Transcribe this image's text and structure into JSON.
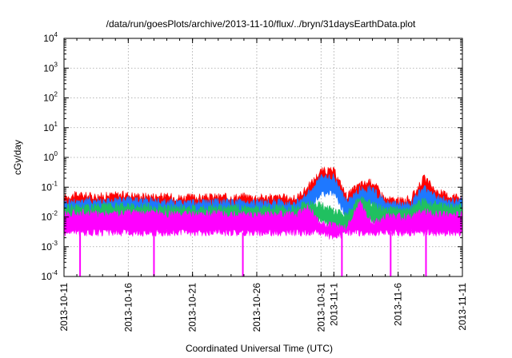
{
  "chart_data": {
    "type": "line",
    "title": "/data/run/goesPlots/archive/2013-11-10/flux/../bryn/31daysEarthData.plot",
    "xlabel": "Coordinated Universal Time (UTC)",
    "ylabel": "cGy/day",
    "yscale": "log",
    "ylim": [
      0.0001,
      10000
    ],
    "xlim": [
      "2013-10-11",
      "2013-11-11"
    ],
    "grid": true,
    "y_ticks": [
      {
        "base": "10",
        "exp": "-4",
        "value": 0.0001
      },
      {
        "base": "10",
        "exp": "-3",
        "value": 0.001
      },
      {
        "base": "10",
        "exp": "-2",
        "value": 0.01
      },
      {
        "base": "10",
        "exp": "-1",
        "value": 0.1
      },
      {
        "base": "10",
        "exp": "0",
        "value": 1
      },
      {
        "base": "10",
        "exp": "1",
        "value": 10
      },
      {
        "base": "10",
        "exp": "2",
        "value": 100
      },
      {
        "base": "10",
        "exp": "3",
        "value": 1000
      },
      {
        "base": "10",
        "exp": "4",
        "value": 10000
      }
    ],
    "x_ticks": [
      {
        "label": "2013-10-11",
        "date": "2013-10-11"
      },
      {
        "label": "2013-10-16",
        "date": "2013-10-16"
      },
      {
        "label": "2013-10-21",
        "date": "2013-10-21"
      },
      {
        "label": "2013-10-26",
        "date": "2013-10-26"
      },
      {
        "label": "2013-10-31",
        "date": "2013-10-31"
      },
      {
        "label": "2013-11-1",
        "date": "2013-11-01"
      },
      {
        "label": "2013-11-6",
        "date": "2013-11-06"
      },
      {
        "label": "2013-11-11",
        "date": "2013-11-11"
      }
    ],
    "series": [
      {
        "color": "#ff0000",
        "x": [
          "2013-10-11",
          "2013-10-12",
          "2013-10-13",
          "2013-10-14",
          "2013-10-15",
          "2013-10-16",
          "2013-10-17",
          "2013-10-18",
          "2013-10-19",
          "2013-10-20",
          "2013-10-21",
          "2013-10-22",
          "2013-10-23",
          "2013-10-24",
          "2013-10-25",
          "2013-10-26",
          "2013-10-27",
          "2013-10-28",
          "2013-10-29",
          "2013-10-30",
          "2013-10-31",
          "2013-11-01",
          "2013-11-02",
          "2013-11-03",
          "2013-11-04",
          "2013-11-05",
          "2013-11-06",
          "2013-11-07",
          "2013-11-08",
          "2013-11-09",
          "2013-11-10",
          "2013-11-11"
        ],
        "values": [
          0.045,
          0.055,
          0.05,
          0.05,
          0.055,
          0.055,
          0.05,
          0.05,
          0.048,
          0.045,
          0.045,
          0.045,
          0.048,
          0.045,
          0.05,
          0.045,
          0.045,
          0.045,
          0.04,
          0.1,
          0.35,
          0.35,
          0.05,
          0.12,
          0.15,
          0.04,
          0.035,
          0.04,
          0.2,
          0.07,
          0.05,
          0.05
        ]
      },
      {
        "color": "#1e78ff",
        "x": [
          "2013-10-11",
          "2013-10-12",
          "2013-10-13",
          "2013-10-14",
          "2013-10-15",
          "2013-10-16",
          "2013-10-17",
          "2013-10-18",
          "2013-10-19",
          "2013-10-20",
          "2013-10-21",
          "2013-10-22",
          "2013-10-23",
          "2013-10-24",
          "2013-10-25",
          "2013-10-26",
          "2013-10-27",
          "2013-10-28",
          "2013-10-29",
          "2013-10-30",
          "2013-10-31",
          "2013-11-01",
          "2013-11-02",
          "2013-11-03",
          "2013-11-04",
          "2013-11-05",
          "2013-11-06",
          "2013-11-07",
          "2013-11-08",
          "2013-11-09",
          "2013-11-10",
          "2013-11-11"
        ],
        "values": [
          0.03,
          0.035,
          0.035,
          0.035,
          0.035,
          0.038,
          0.035,
          0.035,
          0.032,
          0.03,
          0.03,
          0.03,
          0.032,
          0.03,
          0.033,
          0.03,
          0.03,
          0.03,
          0.028,
          0.06,
          0.2,
          0.22,
          0.03,
          0.08,
          0.09,
          0.028,
          0.025,
          0.028,
          0.1,
          0.045,
          0.035,
          0.035
        ]
      },
      {
        "color": "#20c060",
        "x": [
          "2013-10-11",
          "2013-10-12",
          "2013-10-13",
          "2013-10-14",
          "2013-10-15",
          "2013-10-16",
          "2013-10-17",
          "2013-10-18",
          "2013-10-19",
          "2013-10-20",
          "2013-10-21",
          "2013-10-22",
          "2013-10-23",
          "2013-10-24",
          "2013-10-25",
          "2013-10-26",
          "2013-10-27",
          "2013-10-28",
          "2013-10-29",
          "2013-10-30",
          "2013-10-31",
          "2013-11-01",
          "2013-11-02",
          "2013-11-03",
          "2013-11-04",
          "2013-11-05",
          "2013-11-06",
          "2013-11-07",
          "2013-11-08",
          "2013-11-09",
          "2013-11-10",
          "2013-11-11"
        ],
        "values": [
          0.02,
          0.022,
          0.022,
          0.022,
          0.022,
          0.023,
          0.022,
          0.022,
          0.02,
          0.02,
          0.02,
          0.02,
          0.021,
          0.02,
          0.021,
          0.02,
          0.02,
          0.02,
          0.019,
          0.03,
          0.025,
          0.015,
          0.012,
          0.04,
          0.025,
          0.018,
          0.017,
          0.018,
          0.035,
          0.025,
          0.022,
          0.022
        ]
      },
      {
        "color": "#ff00ff",
        "x": [
          "2013-10-11",
          "2013-10-12",
          "2013-10-13",
          "2013-10-14",
          "2013-10-15",
          "2013-10-16",
          "2013-10-17",
          "2013-10-18",
          "2013-10-19",
          "2013-10-20",
          "2013-10-21",
          "2013-10-22",
          "2013-10-23",
          "2013-10-24",
          "2013-10-25",
          "2013-10-26",
          "2013-10-27",
          "2013-10-28",
          "2013-10-29",
          "2013-10-30",
          "2013-10-31",
          "2013-11-01",
          "2013-11-02",
          "2013-11-03",
          "2013-11-04",
          "2013-11-05",
          "2013-11-06",
          "2013-11-07",
          "2013-11-08",
          "2013-11-09",
          "2013-11-10",
          "2013-11-11"
        ],
        "values": [
          0.012,
          0.014,
          0.013,
          0.013,
          0.013,
          0.014,
          0.013,
          0.013,
          0.012,
          0.012,
          0.012,
          0.012,
          0.013,
          0.012,
          0.013,
          0.012,
          0.012,
          0.012,
          0.012,
          0.02,
          0.006,
          0.005,
          0.004,
          0.03,
          0.006,
          0.01,
          0.01,
          0.01,
          0.015,
          0.012,
          0.012,
          0.012
        ],
        "lower_values": [
          0.003,
          0.003,
          0.003,
          0.003,
          0.003,
          0.003,
          0.003,
          0.003,
          0.003,
          0.003,
          0.003,
          0.003,
          0.003,
          0.003,
          0.003,
          0.003,
          0.003,
          0.003,
          0.003,
          0.003,
          0.003,
          0.002,
          0.003,
          0.003,
          0.003,
          0.003,
          0.003,
          0.003,
          0.003,
          0.003,
          0.003,
          0.003
        ],
        "dropouts": [
          "2013-10-12T06:00",
          "2013-10-18T00:00",
          "2013-10-24T22:00",
          "2013-11-01T15:00",
          "2013-11-05T10:00",
          "2013-11-08T04:00"
        ]
      }
    ]
  }
}
